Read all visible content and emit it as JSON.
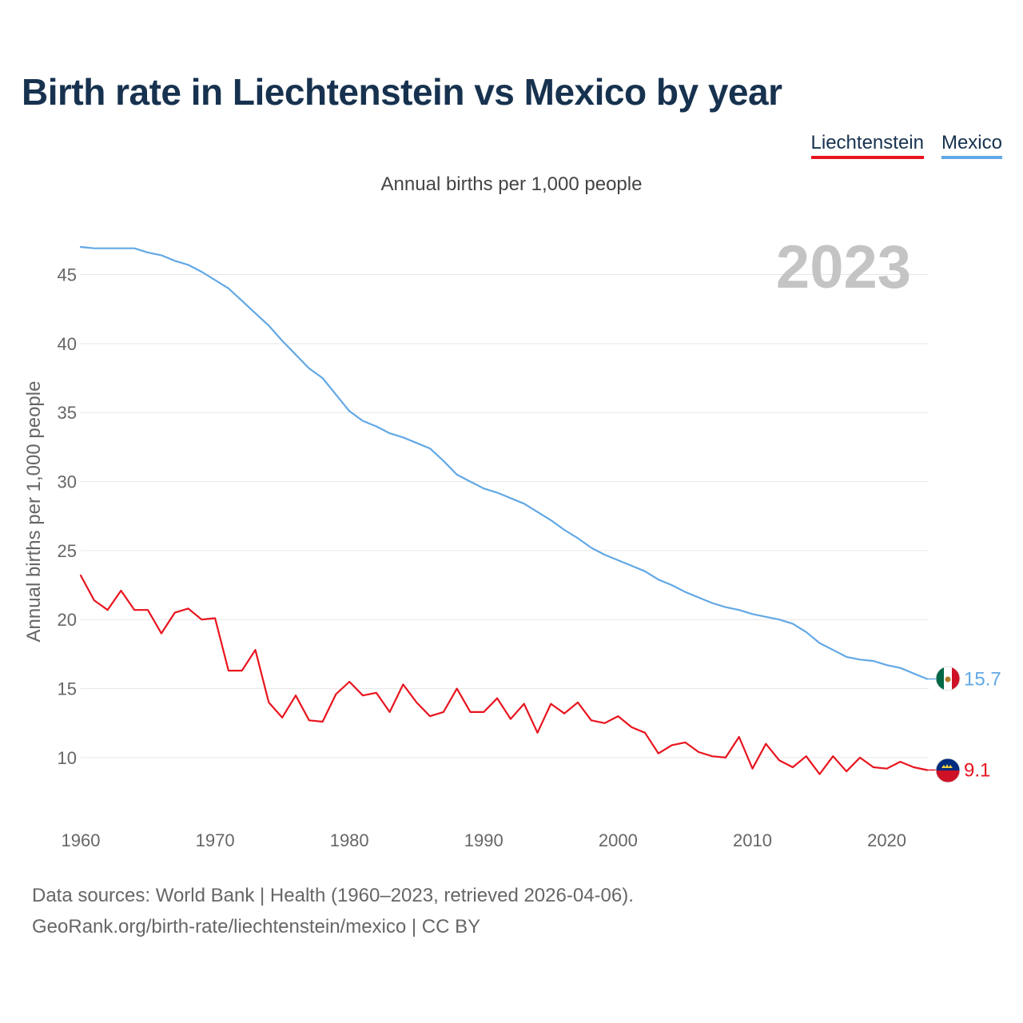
{
  "title": "Birth rate in Liechtenstein vs Mexico by year",
  "subtitle": "Annual births per 1,000 people",
  "legend": {
    "liechtenstein": "Liechtenstein",
    "mexico": "Mexico"
  },
  "source": {
    "line1": "Data sources: World Bank | Health (1960–2023, retrieved 2026-04-06).",
    "line2": "GeoRank.org/birth-rate/liechtenstein/mexico | CC BY"
  },
  "year_label": "2023",
  "colors": {
    "liechtenstein": "#e8141e",
    "mexico": "#62a8e5",
    "title": "#17324f",
    "grid": "#e6e6e6"
  },
  "chart_data": {
    "type": "line",
    "title": "Birth rate in Liechtenstein vs Mexico by year",
    "ylabel": "Annual births per 1,000 people",
    "xlabel": "",
    "xlim": [
      1960,
      2023
    ],
    "ylim": [
      6,
      47
    ],
    "xticks": [
      1960,
      1970,
      1980,
      1990,
      2000,
      2010,
      2020
    ],
    "yticks": [
      10,
      15,
      20,
      25,
      30,
      35,
      40,
      45
    ],
    "grid": true,
    "x": [
      1960,
      1961,
      1962,
      1963,
      1964,
      1965,
      1966,
      1967,
      1968,
      1969,
      1970,
      1971,
      1972,
      1973,
      1974,
      1975,
      1976,
      1977,
      1978,
      1979,
      1980,
      1981,
      1982,
      1983,
      1984,
      1985,
      1986,
      1987,
      1988,
      1989,
      1990,
      1991,
      1992,
      1993,
      1994,
      1995,
      1996,
      1997,
      1998,
      1999,
      2000,
      2001,
      2002,
      2003,
      2004,
      2005,
      2006,
      2007,
      2008,
      2009,
      2010,
      2011,
      2012,
      2013,
      2014,
      2015,
      2016,
      2017,
      2018,
      2019,
      2020,
      2021,
      2022,
      2023
    ],
    "series": [
      {
        "name": "Liechtenstein",
        "color": "#e8141e",
        "end_label": "9.1",
        "values": [
          23.2,
          21.4,
          20.7,
          22.1,
          20.7,
          20.7,
          19.0,
          20.5,
          20.8,
          20.0,
          20.1,
          16.3,
          16.3,
          17.8,
          14.0,
          12.9,
          14.5,
          12.7,
          12.6,
          14.6,
          15.5,
          14.5,
          14.7,
          13.3,
          15.3,
          14.0,
          13.0,
          13.3,
          15.0,
          13.3,
          13.3,
          14.3,
          12.8,
          13.9,
          11.8,
          13.9,
          13.2,
          14.0,
          12.7,
          12.5,
          13.0,
          12.2,
          11.8,
          10.3,
          10.9,
          11.1,
          10.4,
          10.1,
          10.0,
          11.5,
          9.2,
          11.0,
          9.8,
          9.3,
          10.1,
          8.8,
          10.1,
          9.0,
          10.0,
          9.3,
          9.2,
          9.7,
          9.3,
          9.1
        ]
      },
      {
        "name": "Mexico",
        "color": "#62a8e5",
        "end_label": "15.7",
        "values": [
          47.0,
          46.9,
          46.9,
          46.9,
          46.9,
          46.6,
          46.4,
          46.0,
          45.7,
          45.2,
          44.6,
          44.0,
          43.1,
          42.2,
          41.3,
          40.2,
          39.2,
          38.2,
          37.5,
          36.3,
          35.1,
          34.4,
          34.0,
          33.5,
          33.2,
          32.8,
          32.4,
          31.5,
          30.5,
          30.0,
          29.5,
          29.2,
          28.8,
          28.4,
          27.8,
          27.2,
          26.5,
          25.9,
          25.2,
          24.7,
          24.3,
          23.9,
          23.5,
          22.9,
          22.5,
          22.0,
          21.6,
          21.2,
          20.9,
          20.7,
          20.4,
          20.2,
          20.0,
          19.7,
          19.1,
          18.3,
          17.8,
          17.3,
          17.1,
          17.0,
          16.7,
          16.5,
          16.1,
          15.7
        ]
      }
    ]
  }
}
